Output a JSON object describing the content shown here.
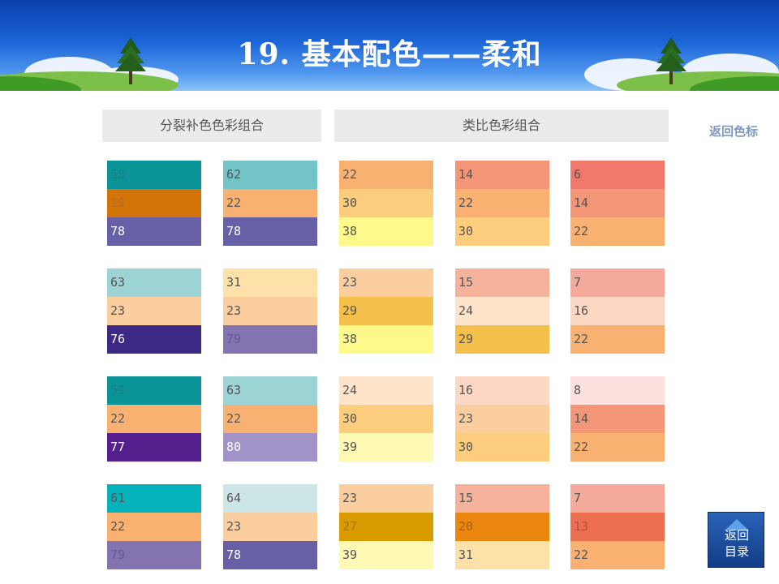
{
  "slide": {
    "title": "19. 基本配色——柔和",
    "headers": {
      "split_complementary": "分裂补色色彩组合",
      "analogous": "类比色彩组合"
    },
    "back_link": "返回色标",
    "home_button": {
      "line1": "返回",
      "line2": "目录"
    }
  },
  "palettes": [
    {
      "colors": [
        "#0a9497",
        "#d27408",
        "#6860a6"
      ],
      "labels": [
        "58",
        "19",
        "78"
      ],
      "text": [
        "#1f7f80",
        "#b66d27",
        "#ffffff"
      ]
    },
    {
      "colors": [
        "#72c4c7",
        "#f8b171",
        "#6860a6"
      ],
      "labels": [
        "62",
        "22",
        "78"
      ],
      "text": [
        "#555555",
        "#555555",
        "#ffffff"
      ]
    },
    {
      "colors": [
        "#f8b171",
        "#fbcd7c",
        "#fdf98a"
      ],
      "labels": [
        "22",
        "30",
        "38"
      ],
      "text": [
        "#555555",
        "#555555",
        "#555555"
      ]
    },
    {
      "colors": [
        "#f39577",
        "#f8b171",
        "#fbcd7c"
      ],
      "labels": [
        "14",
        "22",
        "30"
      ],
      "text": [
        "#555555",
        "#555555",
        "#555555"
      ]
    },
    {
      "colors": [
        "#f0786c",
        "#f39577",
        "#f8b171"
      ],
      "labels": [
        "6",
        "14",
        "22"
      ],
      "text": [
        "#555555",
        "#555555",
        "#555555"
      ]
    },
    {
      "colors": [
        "#9cd3d4",
        "#fbce9f",
        "#3c2985"
      ],
      "labels": [
        "63",
        "23",
        "76"
      ],
      "text": [
        "#555555",
        "#555555",
        "#ffffff"
      ]
    },
    {
      "colors": [
        "#fde1a8",
        "#fbce9f",
        "#8373b1"
      ],
      "labels": [
        "31",
        "23",
        "79"
      ],
      "text": [
        "#555555",
        "#555555",
        "#655a98"
      ]
    },
    {
      "colors": [
        "#fbce9f",
        "#f4c04a",
        "#fdf98a"
      ],
      "labels": [
        "23",
        "29",
        "38"
      ],
      "text": [
        "#555555",
        "#555555",
        "#555555"
      ]
    },
    {
      "colors": [
        "#f5b199",
        "#fde4cb",
        "#f4c04a"
      ],
      "labels": [
        "15",
        "24",
        "29"
      ],
      "text": [
        "#555555",
        "#555555",
        "#555555"
      ]
    },
    {
      "colors": [
        "#f5a99a",
        "#fcd8c4",
        "#f8b171"
      ],
      "labels": [
        "7",
        "16",
        "22"
      ],
      "text": [
        "#555555",
        "#555555",
        "#555555"
      ]
    },
    {
      "colors": [
        "#0a9497",
        "#f8b171",
        "#561f8e"
      ],
      "labels": [
        "59",
        "22",
        "77"
      ],
      "text": [
        "#1f7f80",
        "#555555",
        "#ffffff"
      ]
    },
    {
      "colors": [
        "#9cd3d4",
        "#f8b171",
        "#a193c8"
      ],
      "labels": [
        "63",
        "22",
        "80"
      ],
      "text": [
        "#555555",
        "#555555",
        "#ffffff"
      ]
    },
    {
      "colors": [
        "#fde4cb",
        "#fbcd7c",
        "#fefab6"
      ],
      "labels": [
        "24",
        "30",
        "39"
      ],
      "text": [
        "#555555",
        "#555555",
        "#555555"
      ]
    },
    {
      "colors": [
        "#fcd8c4",
        "#fbce9f",
        "#fbcd7c"
      ],
      "labels": [
        "16",
        "23",
        "30"
      ],
      "text": [
        "#555555",
        "#555555",
        "#555555"
      ]
    },
    {
      "colors": [
        "#fde1df",
        "#f39577",
        "#f8b171"
      ],
      "labels": [
        "8",
        "14",
        "22"
      ],
      "text": [
        "#555555",
        "#555555",
        "#555555"
      ]
    },
    {
      "colors": [
        "#03b2bb",
        "#f8b171",
        "#8373b1"
      ],
      "labels": [
        "61",
        "22",
        "79"
      ],
      "text": [
        "#555555",
        "#555555",
        "#655a98"
      ]
    },
    {
      "colors": [
        "#cce6e7",
        "#fbce9f",
        "#6860a6"
      ],
      "labels": [
        "64",
        "23",
        "78"
      ],
      "text": [
        "#555555",
        "#555555",
        "#ffffff"
      ]
    },
    {
      "colors": [
        "#fbce9f",
        "#d89c00",
        "#fefab6"
      ],
      "labels": [
        "23",
        "27",
        "39"
      ],
      "text": [
        "#555555",
        "#a47a1a",
        "#555555"
      ]
    },
    {
      "colors": [
        "#f5b199",
        "#eb870f",
        "#fde1a8"
      ],
      "labels": [
        "15",
        "20",
        "31"
      ],
      "text": [
        "#555555",
        "#a85f17",
        "#555555"
      ]
    },
    {
      "colors": [
        "#f5a99a",
        "#ec6f52",
        "#f8b171"
      ],
      "labels": [
        "7",
        "13",
        "22"
      ],
      "text": [
        "#555555",
        "#b1523f",
        "#555555"
      ]
    }
  ]
}
